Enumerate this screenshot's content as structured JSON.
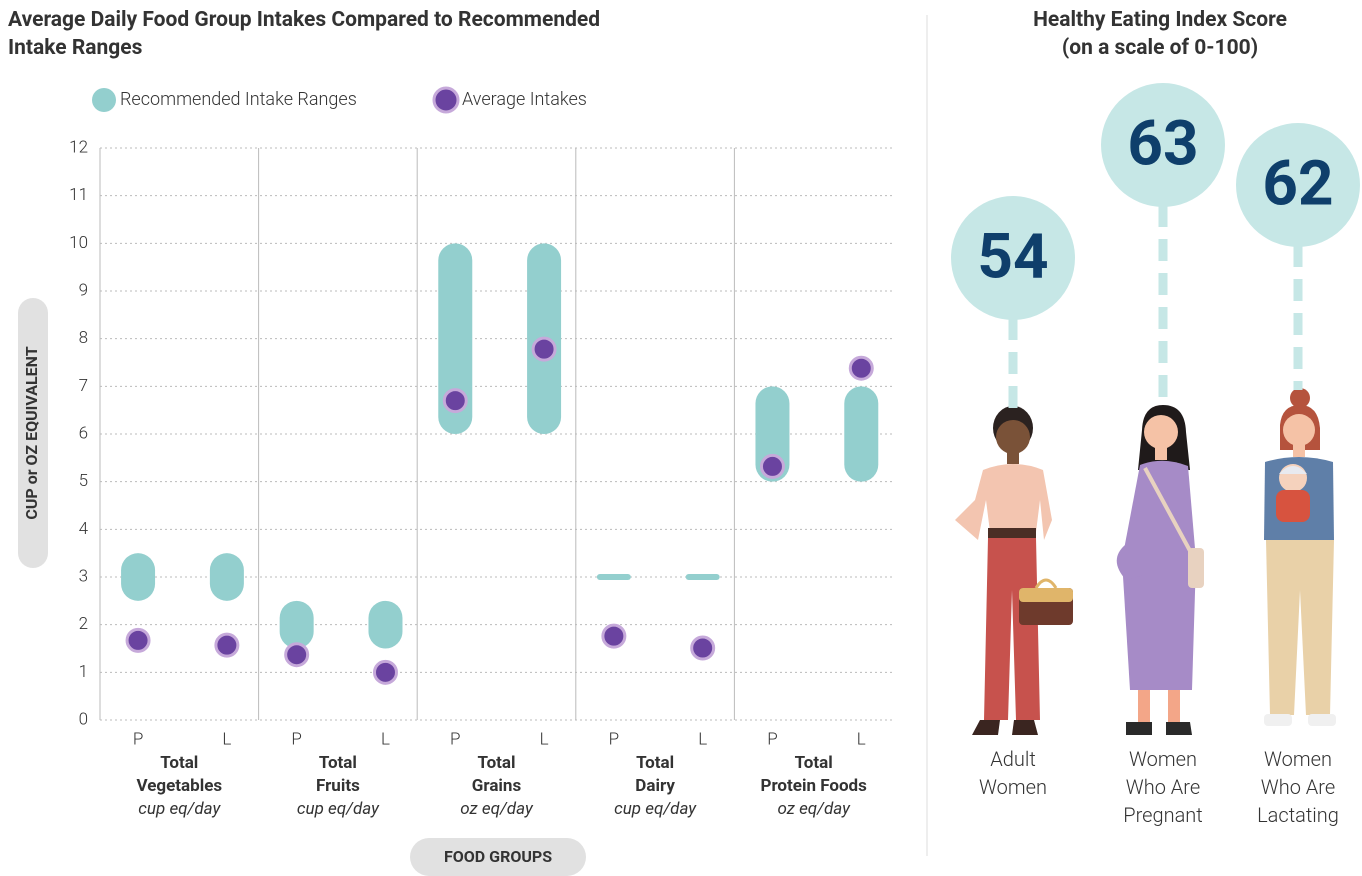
{
  "chart_data": [
    {
      "type": "range-dot",
      "title": "Average Daily Food Group Intakes Compared to Recommended Intake Ranges",
      "y_label": "CUP or OZ EQUIVALENT",
      "x_label": "FOOD GROUPS",
      "groups": [
        {
          "name": "Total Vegetables",
          "unit": "cup eq/day"
        },
        {
          "name": "Total Fruits",
          "unit": "cup eq/day"
        },
        {
          "name": "Total Grains",
          "unit": "oz eq/day"
        },
        {
          "name": "Total Dairy",
          "unit": "cup eq/day"
        },
        {
          "name": "Total Protein Foods",
          "unit": "oz eq/day"
        }
      ],
      "categories": [
        "P",
        "L",
        "P",
        "L",
        "P",
        "L",
        "P",
        "L",
        "P",
        "L"
      ],
      "series": [
        {
          "name": "Recommended Intake Ranges",
          "color": "#93cfce",
          "low": [
            2.5,
            2.5,
            1.5,
            1.5,
            6,
            6,
            3,
            3,
            5,
            5
          ],
          "high": [
            3.5,
            3.5,
            2.5,
            2.5,
            10,
            10,
            3,
            3,
            7,
            7
          ]
        },
        {
          "name": "Average Intakes",
          "color": "#6a43a0",
          "values": [
            1.67,
            1.57,
            1.37,
            1.0,
            6.7,
            7.78,
            1.76,
            1.51,
            5.32,
            7.38
          ]
        }
      ],
      "ylim": [
        0,
        12
      ],
      "yticks": [
        0,
        1,
        2,
        3,
        4,
        5,
        6,
        7,
        8,
        9,
        10,
        11,
        12
      ],
      "grid": true
    },
    {
      "type": "score-callout",
      "title": "Healthy Eating Index Score",
      "subtitle": "(on a scale of 0-100)",
      "categories": [
        "Adult Women",
        "Women Who Are Pregnant",
        "Women Who Are Lactating"
      ],
      "values": [
        54,
        63,
        62
      ],
      "color": "#c6e7e6"
    }
  ]
}
